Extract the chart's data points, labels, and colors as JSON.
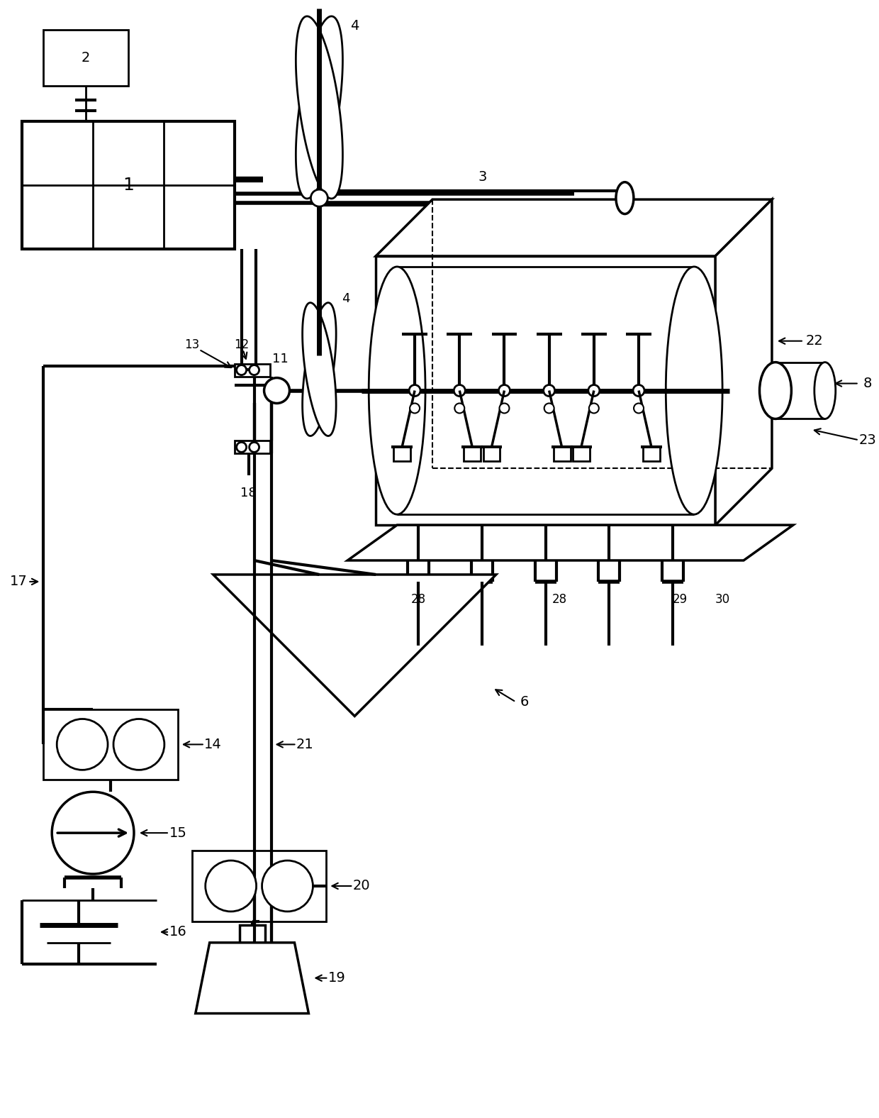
{
  "bg": "#ffffff",
  "lc": "#000000",
  "lw": 2.0,
  "fw": 12.4,
  "fh": 15.76
}
